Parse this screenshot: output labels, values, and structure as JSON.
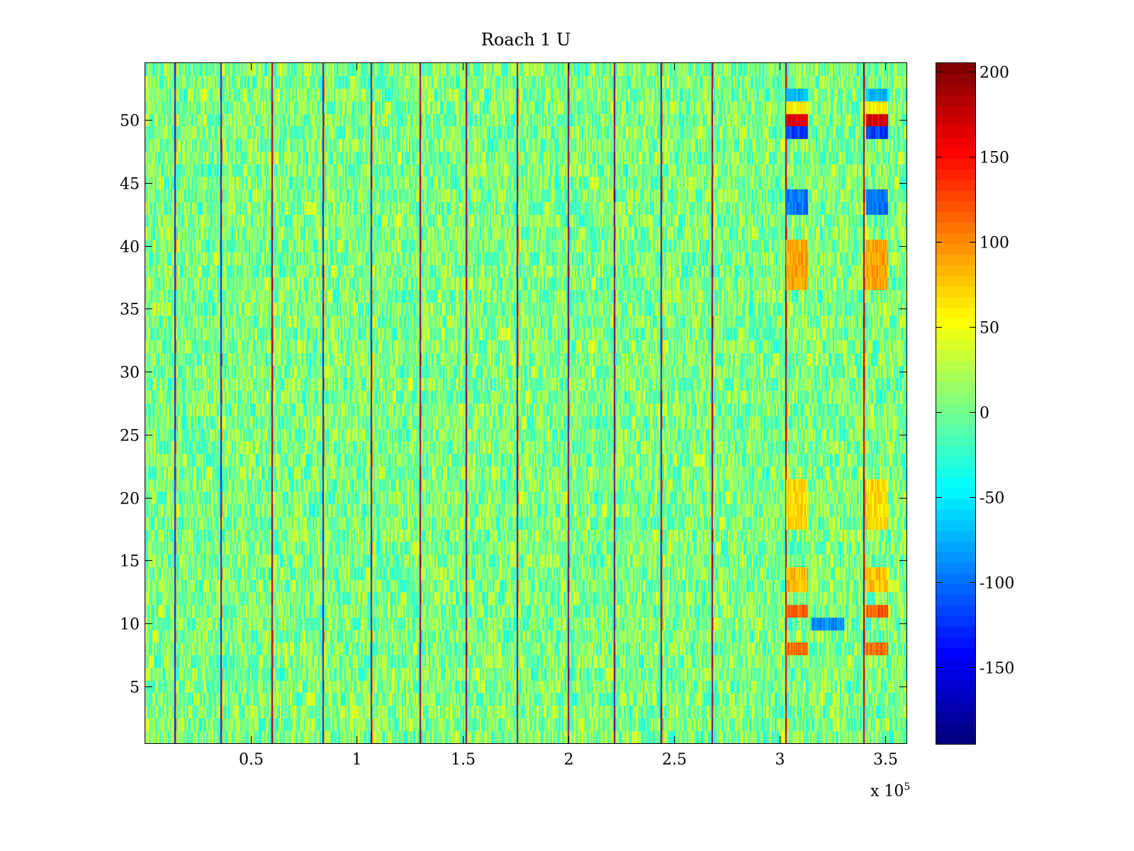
{
  "chart_data": {
    "type": "heatmap",
    "title": "Roach 1 U",
    "xlabel": "",
    "ylabel": "",
    "x_exponent_label": "x 10",
    "x_exponent": "5",
    "xlim": [
      0,
      360000
    ],
    "ylim": [
      0.5,
      54.5
    ],
    "xticks": [
      50000,
      100000,
      150000,
      200000,
      250000,
      300000,
      350000
    ],
    "xtick_labels": [
      "0.5",
      "1",
      "1.5",
      "2",
      "2.5",
      "3",
      "3.5"
    ],
    "yticks": [
      5,
      10,
      15,
      20,
      25,
      30,
      35,
      40,
      45,
      50
    ],
    "ytick_labels": [
      "5",
      "10",
      "15",
      "20",
      "25",
      "30",
      "35",
      "40",
      "45",
      "50"
    ],
    "colormap": "jet",
    "clim": [
      -195,
      205
    ],
    "colorbar_ticks": [
      200,
      150,
      100,
      50,
      0,
      -50,
      -100,
      -150
    ],
    "colorbar_tick_labels": [
      "200",
      "150",
      "100",
      "50",
      "0",
      "-50",
      "-100",
      "-150"
    ],
    "rows": 54,
    "background_value_range": [
      -40,
      50
    ],
    "vertical_stripes_x": [
      14000,
      36000,
      60000,
      84000,
      107000,
      130000,
      152000,
      176000,
      200000,
      222000,
      244000,
      268000,
      303000,
      340000
    ],
    "event_blocks": [
      {
        "x_range": [
          303000,
          313000
        ],
        "rows": [
          50
        ],
        "value": 170
      },
      {
        "x_range": [
          341000,
          351000
        ],
        "rows": [
          50
        ],
        "value": 170
      },
      {
        "x_range": [
          303000,
          313000
        ],
        "rows": [
          49
        ],
        "value": -120
      },
      {
        "x_range": [
          341000,
          351000
        ],
        "rows": [
          49
        ],
        "value": -120
      },
      {
        "x_range": [
          303000,
          313000
        ],
        "rows": [
          51
        ],
        "value": 60
      },
      {
        "x_range": [
          341000,
          351000
        ],
        "rows": [
          51
        ],
        "value": 60
      },
      {
        "x_range": [
          303000,
          313000
        ],
        "rows": [
          52
        ],
        "value": -70
      },
      {
        "x_range": [
          341000,
          351000
        ],
        "rows": [
          52
        ],
        "value": -70
      },
      {
        "x_range": [
          303000,
          313000
        ],
        "rows": [
          43,
          44
        ],
        "value": -100
      },
      {
        "x_range": [
          341000,
          351000
        ],
        "rows": [
          43,
          44
        ],
        "value": -100
      },
      {
        "x_range": [
          303000,
          313000
        ],
        "rows": [
          37,
          38,
          39,
          40
        ],
        "value": 90
      },
      {
        "x_range": [
          341000,
          351000
        ],
        "rows": [
          37,
          38,
          39,
          40
        ],
        "value": 90
      },
      {
        "x_range": [
          303000,
          313000
        ],
        "rows": [
          18,
          19,
          20,
          21
        ],
        "value": 70
      },
      {
        "x_range": [
          341000,
          351000
        ],
        "rows": [
          18,
          19,
          20,
          21
        ],
        "value": 70
      },
      {
        "x_range": [
          303000,
          313000
        ],
        "rows": [
          11
        ],
        "value": 120
      },
      {
        "x_range": [
          341000,
          351000
        ],
        "rows": [
          11
        ],
        "value": 120
      },
      {
        "x_range": [
          303000,
          313000
        ],
        "rows": [
          8
        ],
        "value": 110
      },
      {
        "x_range": [
          341000,
          351000
        ],
        "rows": [
          8
        ],
        "value": 110
      },
      {
        "x_range": [
          315000,
          330000
        ],
        "rows": [
          10
        ],
        "value": -90
      },
      {
        "x_range": [
          303000,
          313000
        ],
        "rows": [
          13,
          14
        ],
        "value": 80
      },
      {
        "x_range": [
          341000,
          351000
        ],
        "rows": [
          13,
          14
        ],
        "value": 80
      }
    ]
  }
}
